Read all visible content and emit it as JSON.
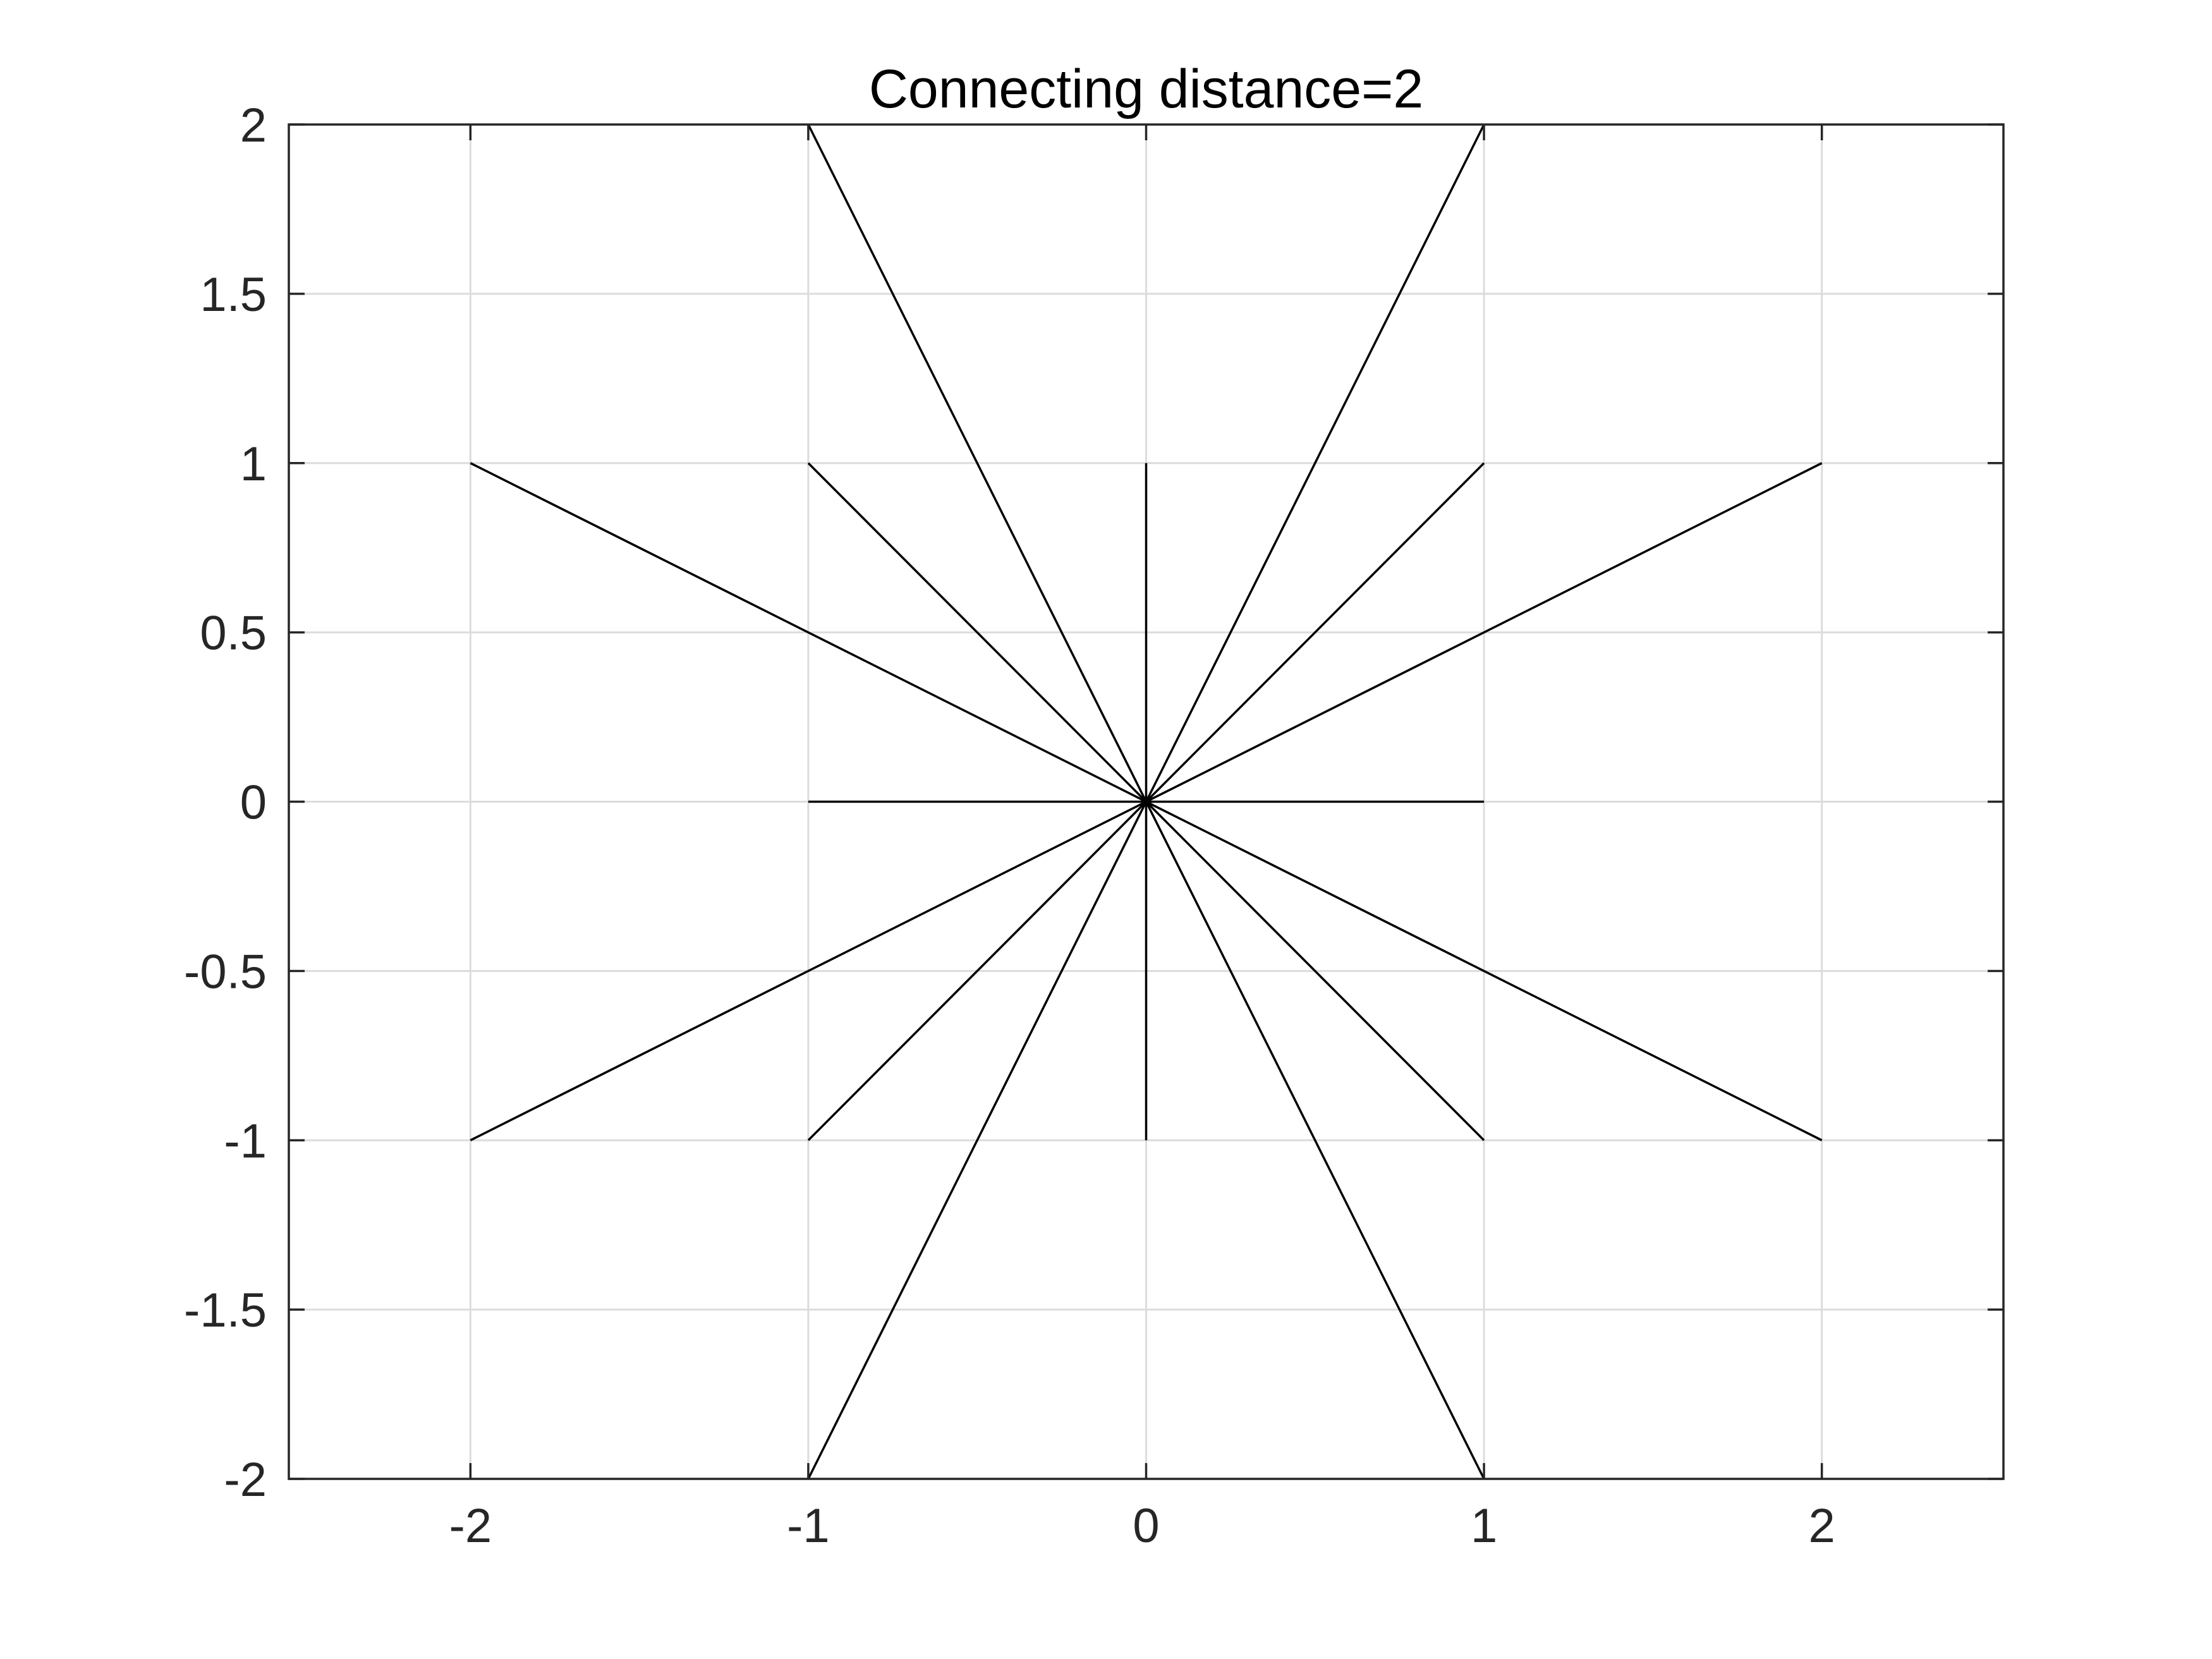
{
  "chart_data": {
    "type": "line",
    "title": "Connecting distance=2",
    "xlabel": "",
    "ylabel": "",
    "xlim": [
      -2.5375,
      2.5375
    ],
    "ylim": [
      -2,
      2
    ],
    "xticks": [
      -2,
      -1,
      0,
      1,
      2
    ],
    "xtick_labels": [
      "-2",
      "-1",
      "0",
      "1",
      "2"
    ],
    "yticks": [
      -2,
      -1.5,
      -1,
      -0.5,
      0,
      0.5,
      1,
      1.5,
      2
    ],
    "ytick_labels": [
      "-2",
      "-1.5",
      "-1",
      "-0.5",
      "0",
      "0.5",
      "1",
      "1.5",
      "2"
    ],
    "grid": true,
    "line_color": "#000000",
    "grid_color": "#dcdcdc",
    "axes_color": "#262626",
    "segments": [
      {
        "x": [
          0,
          -1
        ],
        "y": [
          0,
          2
        ]
      },
      {
        "x": [
          0,
          1
        ],
        "y": [
          0,
          2
        ]
      },
      {
        "x": [
          0,
          -2
        ],
        "y": [
          0,
          1
        ]
      },
      {
        "x": [
          0,
          -1
        ],
        "y": [
          0,
          1
        ]
      },
      {
        "x": [
          0,
          0
        ],
        "y": [
          0,
          1
        ]
      },
      {
        "x": [
          0,
          1
        ],
        "y": [
          0,
          1
        ]
      },
      {
        "x": [
          0,
          2
        ],
        "y": [
          0,
          1
        ]
      },
      {
        "x": [
          0,
          -1
        ],
        "y": [
          0,
          0
        ]
      },
      {
        "x": [
          0,
          1
        ],
        "y": [
          0,
          0
        ]
      },
      {
        "x": [
          0,
          -2
        ],
        "y": [
          0,
          -1
        ]
      },
      {
        "x": [
          0,
          -1
        ],
        "y": [
          0,
          -1
        ]
      },
      {
        "x": [
          0,
          0
        ],
        "y": [
          0,
          -1
        ]
      },
      {
        "x": [
          0,
          1
        ],
        "y": [
          0,
          -1
        ]
      },
      {
        "x": [
          0,
          2
        ],
        "y": [
          0,
          -1
        ]
      },
      {
        "x": [
          0,
          -1
        ],
        "y": [
          0,
          -2
        ]
      },
      {
        "x": [
          0,
          1
        ],
        "y": [
          0,
          -2
        ]
      }
    ]
  }
}
